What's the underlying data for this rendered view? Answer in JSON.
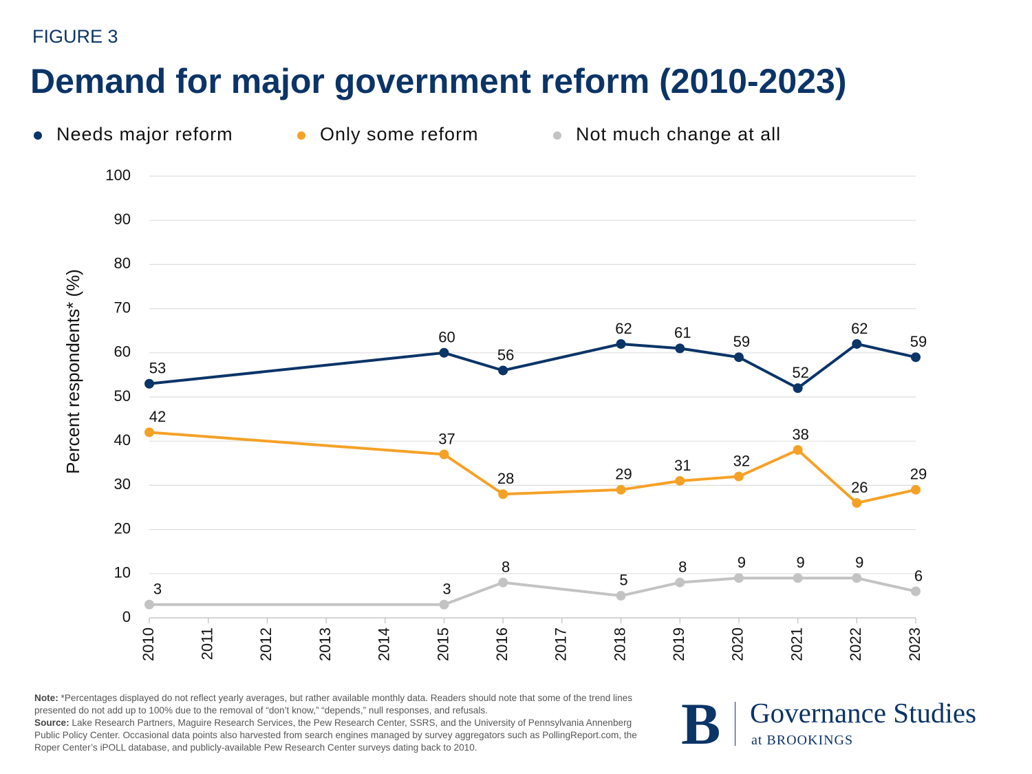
{
  "chart_data": {
    "type": "line",
    "figure_label": "FIGURE 3",
    "title": "Demand for major government reform (2010-2023)",
    "ylabel": "Percent respondents* (%)",
    "x": [
      2010,
      2015,
      2016,
      2018,
      2019,
      2020,
      2021,
      2022,
      2023
    ],
    "series": [
      {
        "name": "Needs major reform",
        "color": "#0b3467",
        "values": [
          53,
          60,
          56,
          62,
          61,
          59,
          52,
          62,
          59
        ]
      },
      {
        "name": "Only some reform",
        "color": "#f5a126",
        "values": [
          42,
          37,
          28,
          29,
          31,
          32,
          38,
          26,
          29
        ]
      },
      {
        "name": "Not much change at all",
        "color": "#c3c3c3",
        "values": [
          3,
          3,
          8,
          5,
          8,
          9,
          9,
          9,
          6
        ]
      }
    ],
    "xlim": [
      2010,
      2023
    ],
    "xticks": [
      2010,
      2011,
      2012,
      2013,
      2014,
      2015,
      2016,
      2017,
      2018,
      2019,
      2020,
      2021,
      2022,
      2023
    ],
    "ylim": [
      0,
      100
    ],
    "yticks": [
      0,
      10,
      20,
      30,
      40,
      50,
      60,
      70,
      80,
      90,
      100
    ],
    "grid": true,
    "legend": "top",
    "note_label": "Note:",
    "note": "*Percentages displayed do not reflect yearly averages, but rather available monthly data. Readers should note that some of the trend lines presented do not add up to 100% due to the removal of “don’t know,” “depends,” null responses, and refusals.",
    "source_label": "Source:",
    "source": "Lake Research Partners, Maguire Research Services, the Pew Research Center, SSRS, and the University of Pennsylvania Annenberg Public Policy Center. Occasional data points also harvested from search engines managed by survey aggregators such as PollingReport.com, the Roper Center’s iPOLL database, and publicly-available Pew Research Center surveys dating back to 2010.",
    "brand": {
      "mark": "B",
      "name": "Governance Studies",
      "sub": "at BROOKINGS"
    }
  }
}
